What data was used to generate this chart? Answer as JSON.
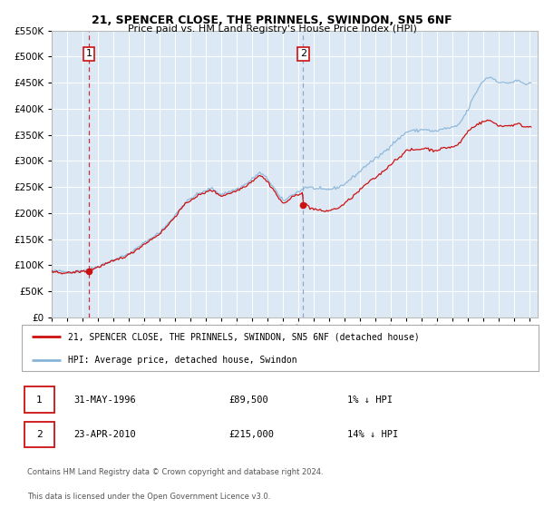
{
  "title": "21, SPENCER CLOSE, THE PRINNELS, SWINDON, SN5 6NF",
  "subtitle": "Price paid vs. HM Land Registry's House Price Index (HPI)",
  "legend_line1": "21, SPENCER CLOSE, THE PRINNELS, SWINDON, SN5 6NF (detached house)",
  "legend_line2": "HPI: Average price, detached house, Swindon",
  "sale1_date": "31-MAY-1996",
  "sale1_price": 89500,
  "sale1_hpi": "1% ↓ HPI",
  "sale2_date": "23-APR-2010",
  "sale2_price": 215000,
  "sale2_hpi": "14% ↓ HPI",
  "footer1": "Contains HM Land Registry data © Crown copyright and database right 2024.",
  "footer2": "This data is licensed under the Open Government Licence v3.0.",
  "sale1_x": 1996.42,
  "sale2_x": 2010.31,
  "ylim_min": 0,
  "ylim_max": 550000,
  "xlim_min": 1994.0,
  "xlim_max": 2025.5,
  "plot_bg_color": "#dce9f5",
  "grid_color": "#ffffff",
  "hpi_color": "#88b4d8",
  "price_color": "#cc1111",
  "sale_marker_color": "#cc1111",
  "dashed1_color": "#cc1111",
  "dashed2_color": "#8899bb"
}
